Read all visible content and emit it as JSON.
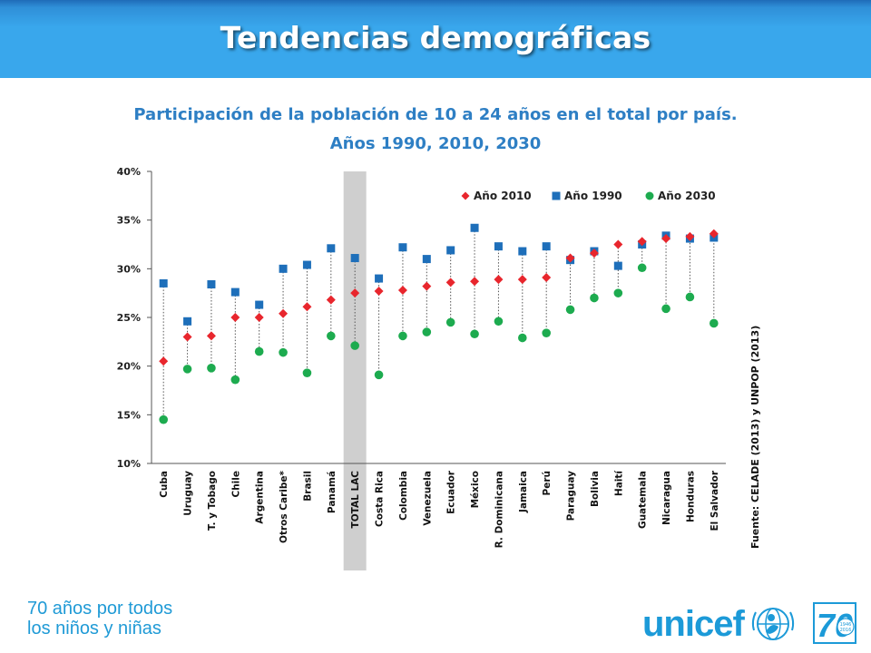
{
  "header": {
    "title": "Tendencias demográficas",
    "colors": {
      "banner": "#39a7ec",
      "banner_dark": "#1f6bb8",
      "title_text": "#ffffff"
    }
  },
  "chart_data": {
    "type": "scatter",
    "title_line1": "Participación de la población de 10 a 24 años en el total por país.",
    "title_line2": "Años 1990, 2010, 2030",
    "ylim": [
      0.1,
      0.4
    ],
    "yticks": [
      "10%",
      "15%",
      "20%",
      "25%",
      "30%",
      "35%",
      "40%"
    ],
    "ytick_values": [
      0.1,
      0.15,
      0.2,
      0.25,
      0.3,
      0.35,
      0.4
    ],
    "grid": false,
    "legend_position": "top-right",
    "highlight_category": "TOTAL LAC",
    "categories": [
      "Cuba",
      "Uruguay",
      "T. y Tobago",
      "Chile",
      "Argentina",
      "Otros Caribe*",
      "Brasil",
      "Panamá",
      "TOTAL LAC",
      "Costa Rica",
      "Colombia",
      "Venezuela",
      "Ecuador",
      "México",
      "R. Dominicana",
      "Jamaica",
      "Perú",
      "Paraguay",
      "Bolivia",
      "Haití",
      "Guatemala",
      "Nicaragua",
      "Honduras",
      "El Salvador"
    ],
    "series": [
      {
        "name": "Año 2010",
        "marker": "diamond",
        "color": "#e8262d",
        "values": [
          0.205,
          0.23,
          0.231,
          0.25,
          0.25,
          0.254,
          0.261,
          0.268,
          0.275,
          0.277,
          0.278,
          0.282,
          0.286,
          0.287,
          0.289,
          0.289,
          0.291,
          0.311,
          0.316,
          0.325,
          0.328,
          0.331,
          0.333,
          0.336
        ]
      },
      {
        "name": "Año 1990",
        "marker": "square",
        "color": "#1e6fba",
        "values": [
          0.285,
          0.246,
          0.284,
          0.276,
          0.263,
          0.3,
          0.304,
          0.321,
          0.311,
          0.29,
          0.322,
          0.31,
          0.319,
          0.342,
          0.323,
          0.318,
          0.323,
          0.309,
          0.318,
          0.303,
          0.325,
          0.334,
          0.331,
          0.332
        ]
      },
      {
        "name": "Año 2030",
        "marker": "circle",
        "color": "#1dab4f",
        "values": [
          0.145,
          0.197,
          0.198,
          0.186,
          0.215,
          0.214,
          0.193,
          0.231,
          0.221,
          0.191,
          0.231,
          0.235,
          0.245,
          0.233,
          0.246,
          0.229,
          0.234,
          0.258,
          0.27,
          0.275,
          0.301,
          0.259,
          0.271,
          0.244
        ]
      }
    ],
    "source": "Fuente: CELADE (2013) y UNPOP (2013)"
  },
  "footer": {
    "line1": "70 años por todos",
    "line2": "los niños y niñas",
    "brand": "unicef",
    "badge_number": "70",
    "badge_years": [
      "1946",
      "2016"
    ],
    "color": "#1f9ad6"
  }
}
